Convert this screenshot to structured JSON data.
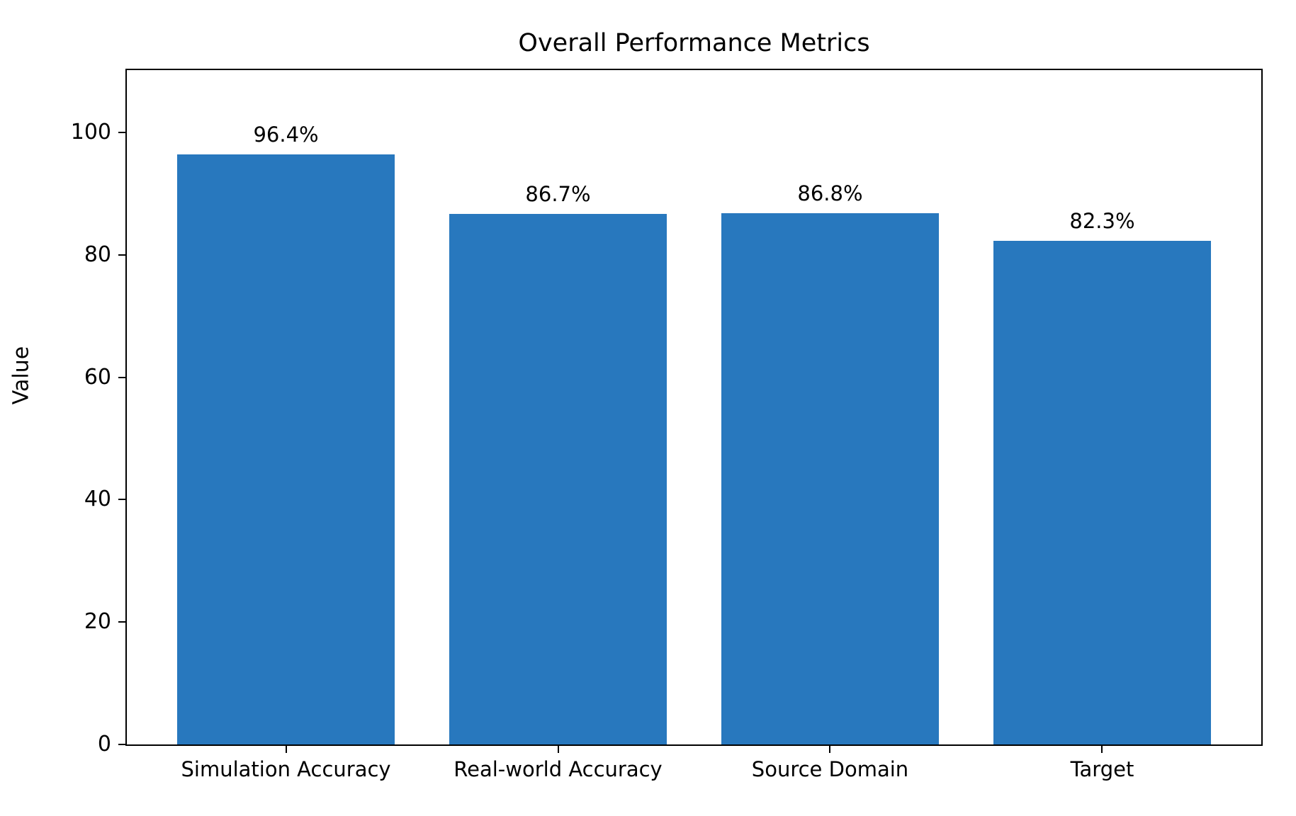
{
  "chart_data": {
    "type": "bar",
    "title": "Overall Performance Metrics",
    "xlabel": "",
    "ylabel": "Value",
    "categories": [
      "Simulation Accuracy",
      "Real-world Accuracy",
      "Source Domain",
      "Target"
    ],
    "values": [
      96.4,
      86.7,
      86.8,
      82.3
    ],
    "value_labels": [
      "96.4%",
      "86.7%",
      "86.8%",
      "82.3%"
    ],
    "yticks": [
      0,
      20,
      40,
      60,
      80,
      100
    ],
    "ylim": [
      0,
      110.4
    ],
    "bar_color": "#2878be",
    "background_color": "#ffffff",
    "spine_color": "#000000",
    "text_color": "#000000",
    "grid": false,
    "legend": null,
    "bar_width_fraction": 0.8
  }
}
